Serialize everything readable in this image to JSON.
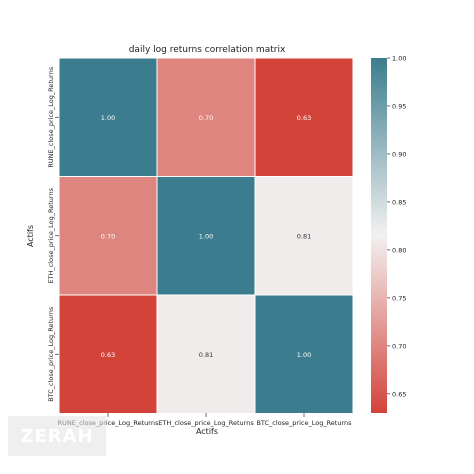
{
  "chart_data": {
    "type": "heatmap",
    "title": "daily log returns correlation matrix",
    "xlabel": "Actifs",
    "ylabel": "Actifs",
    "x_categories": [
      "RUNE_close_price_Log_Returns",
      "ETH_close_price_Log_Returns",
      "BTC_close_price_Log_Returns"
    ],
    "y_categories": [
      "RUNE_close_price_Log_Returns",
      "ETH_close_price_Log_Returns",
      "BTC_close_price_Log_Returns"
    ],
    "values": [
      [
        1.0,
        0.7,
        0.63
      ],
      [
        0.7,
        1.0,
        0.81
      ],
      [
        0.63,
        0.81,
        1.0
      ]
    ],
    "cell_labels": [
      [
        "1.00",
        "0.70",
        "0.63"
      ],
      [
        "0.70",
        "1.00",
        "0.81"
      ],
      [
        "0.63",
        "0.81",
        "1.00"
      ]
    ],
    "colorbar": {
      "range": [
        0.63,
        1.0
      ],
      "ticks": [
        0.65,
        0.7,
        0.75,
        0.8,
        0.85,
        0.9,
        0.95,
        1.0
      ],
      "tick_labels": [
        "0.65",
        "0.70",
        "0.75",
        "0.80",
        "0.85",
        "0.90",
        "0.95",
        "1.00"
      ]
    },
    "colors": {
      "low": "#d3433a",
      "mid": "#f2f1f1",
      "high": "#3b7d8e",
      "cell_border": "#ffffff"
    },
    "grid": false
  },
  "watermark": {
    "text": "ZERAH"
  }
}
